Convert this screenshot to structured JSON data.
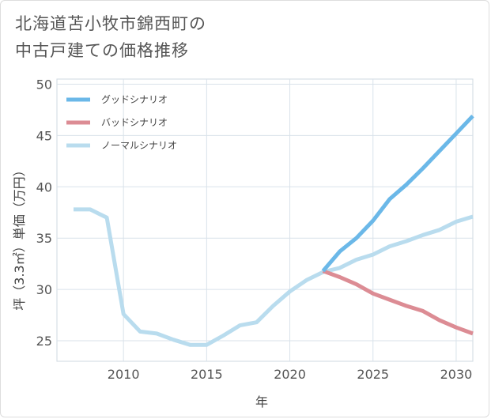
{
  "title_lines": [
    "北海道苫小牧市錦西町の",
    "中古戸建ての価格推移"
  ],
  "chart_data": {
    "type": "line",
    "xlabel": "年",
    "ylabel": "坪（3.3㎡）単価（万円）",
    "xlim": [
      2006,
      2031
    ],
    "ylim": [
      23,
      50.5
    ],
    "x_ticks": [
      2010,
      2015,
      2020,
      2025,
      2030
    ],
    "y_ticks": [
      25,
      30,
      35,
      40,
      45,
      50
    ],
    "grid": true,
    "legend_position": "top-left",
    "series": [
      {
        "name": "グッドシナリオ",
        "color": "#6bb8e8",
        "x": [
          2022,
          2023,
          2024,
          2025,
          2026,
          2027,
          2028,
          2029,
          2030,
          2031
        ],
        "y": [
          31.8,
          33.7,
          35.0,
          36.7,
          38.8,
          40.2,
          41.8,
          43.5,
          45.2,
          46.9
        ]
      },
      {
        "name": "バッドシナリオ",
        "color": "#dc8c94",
        "x": [
          2022,
          2023,
          2024,
          2025,
          2026,
          2027,
          2028,
          2029,
          2030,
          2031
        ],
        "y": [
          31.8,
          31.2,
          30.5,
          29.6,
          29.0,
          28.4,
          27.9,
          27.0,
          26.3,
          25.7
        ]
      },
      {
        "name": "ノーマルシナリオ",
        "color": "#b9dcee",
        "x": [
          2007,
          2008,
          2009,
          2010,
          2011,
          2012,
          2013,
          2014,
          2015,
          2016,
          2017,
          2018,
          2019,
          2020,
          2021,
          2022,
          2023,
          2024,
          2025,
          2026,
          2027,
          2028,
          2029,
          2030,
          2031
        ],
        "y": [
          37.8,
          37.8,
          37.0,
          27.6,
          25.9,
          25.7,
          25.1,
          24.6,
          24.6,
          25.5,
          26.5,
          26.8,
          28.4,
          29.8,
          30.9,
          31.7,
          32.1,
          32.9,
          33.4,
          34.2,
          34.7,
          35.3,
          35.8,
          36.6,
          37.1
        ]
      }
    ]
  }
}
